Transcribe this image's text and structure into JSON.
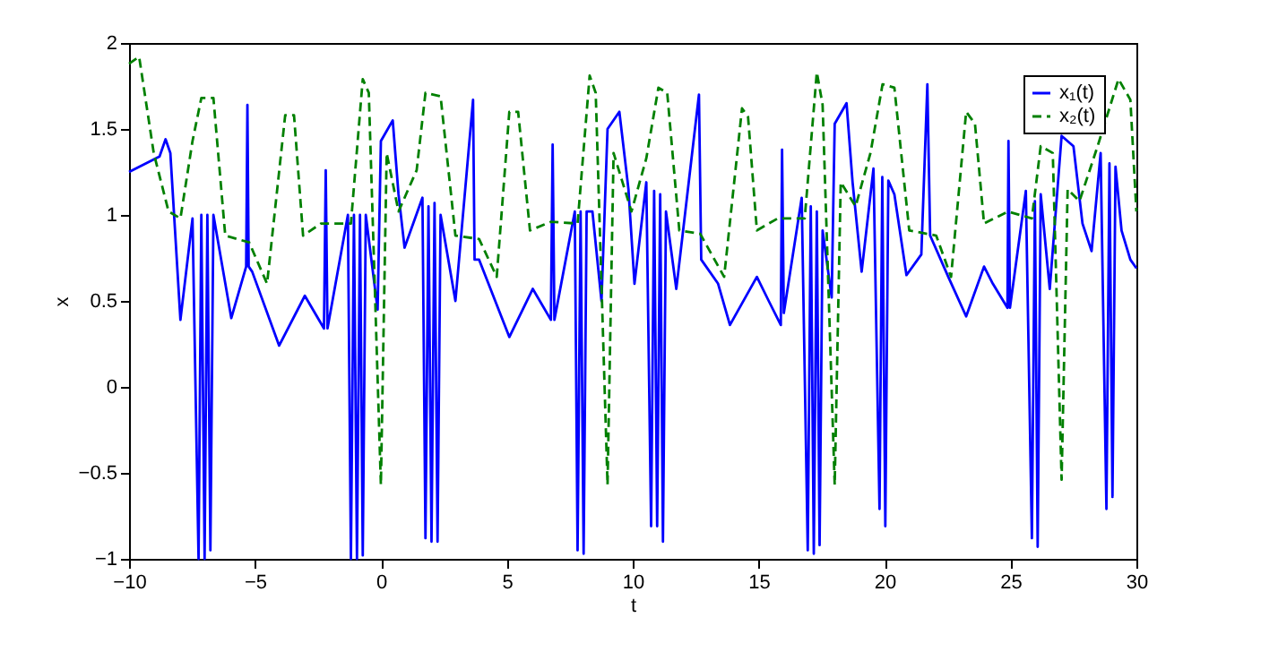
{
  "chart_data": {
    "type": "line",
    "xlabel": "t",
    "ylabel": "x",
    "xlim": [
      -10,
      30
    ],
    "ylim": [
      -1,
      2
    ],
    "xticks": [
      {
        "value": -10,
        "label": "−10"
      },
      {
        "value": -5,
        "label": "−5"
      },
      0,
      5,
      10,
      15,
      20,
      25,
      30
    ],
    "yticks": [
      {
        "value": -1,
        "label": "−1"
      },
      {
        "value": -0.5,
        "label": "−0.5"
      },
      0,
      0.5,
      1,
      1.5,
      2
    ],
    "grid": false,
    "legend": "top right",
    "marker": "none",
    "series": [
      {
        "name": "x₁(t)",
        "color": "#0000ff",
        "line_style": "solid",
        "x": [
          -10,
          -8.79,
          -8.55,
          -8.36,
          -7.96,
          -7.48,
          -7.24,
          -7.13,
          -7.0,
          -6.89,
          -6.77,
          -6.65,
          -5.94,
          -5.35,
          -5.3,
          -5.25,
          -5.11,
          -4.04,
          -3.02,
          -2.26,
          -2.19,
          -2.12,
          -1.31,
          -1.19,
          -1.07,
          -0.95,
          -0.83,
          -0.72,
          -0.6,
          -0.13,
          0,
          0.47,
          0.7,
          0.94,
          1.65,
          1.77,
          1.89,
          2.01,
          2.13,
          2.25,
          2.37,
          2.96,
          3.66,
          3.72,
          3.9,
          5.1,
          6.03,
          6.75,
          6.82,
          6.89,
          7.7,
          7.81,
          7.93,
          8.05,
          8.17,
          8.4,
          8.76,
          9.0,
          9.47,
          9.83,
          10.07,
          10.54,
          10.73,
          10.85,
          10.97,
          11.09,
          11.2,
          11.32,
          11.73,
          12.63,
          12.72,
          13.39,
          13.86,
          14.93,
          15.4,
          15.88,
          15.93,
          16.0,
          16.71,
          16.95,
          17.07,
          17.19,
          17.31,
          17.42,
          17.54,
          17.9,
          18.02,
          18.49,
          18.73,
          19.09,
          19.56,
          19.8,
          19.91,
          20.03,
          20.15,
          20.39,
          20.87,
          21.46,
          21.7,
          21.81,
          22.53,
          23.24,
          23.95,
          24.3,
          24.88,
          24.92,
          24.98,
          25.61,
          25.85,
          25.97,
          26.08,
          26.2,
          26.56,
          27.03,
          27.5,
          27.86,
          28.22,
          28.58,
          28.81,
          28.93,
          29.05,
          29.17,
          29.41,
          29.76,
          30
        ],
        "values": [
          1.25,
          1.34,
          1.44,
          1.36,
          0.39,
          0.98,
          -1,
          1.0,
          -1,
          1.0,
          -0.95,
          1.0,
          0.4,
          0.7,
          1.64,
          0.7,
          0.67,
          0.24,
          0.53,
          0.34,
          1.26,
          0.34,
          1.0,
          -1,
          1.0,
          -1,
          1.0,
          -0.98,
          1.0,
          0.45,
          1.43,
          1.55,
          1.12,
          0.81,
          1.1,
          -0.88,
          1.05,
          -0.9,
          1.07,
          -0.9,
          1.0,
          0.5,
          1.67,
          0.74,
          0.74,
          0.29,
          0.57,
          0.39,
          1.41,
          0.39,
          1.02,
          -0.95,
          1.02,
          -0.97,
          1.02,
          1.02,
          0.5,
          1.5,
          1.6,
          1.15,
          0.6,
          1.19,
          -0.81,
          1.14,
          -0.81,
          1.12,
          -0.9,
          1.02,
          0.57,
          1.7,
          0.74,
          0.6,
          0.36,
          0.64,
          0.5,
          0.36,
          1.38,
          0.43,
          1.1,
          -0.95,
          1.05,
          -0.97,
          1.02,
          -0.92,
          0.91,
          0.52,
          1.53,
          1.65,
          1.19,
          0.67,
          1.27,
          -0.71,
          1.22,
          -0.81,
          1.2,
          1.12,
          0.65,
          0.77,
          1.76,
          0.88,
          0.64,
          0.41,
          0.7,
          0.6,
          0.46,
          1.43,
          0.46,
          1.14,
          -0.88,
          1.08,
          -0.93,
          1.12,
          0.57,
          1.46,
          1.4,
          0.95,
          0.79,
          1.36,
          -0.71,
          1.3,
          -0.64,
          1.28,
          0.91,
          0.74,
          0.69
        ]
      },
      {
        "name": "x₂(t)",
        "color": "#008000",
        "line_style": "dashed",
        "x": [
          -10,
          -9.6,
          -9.02,
          -8.43,
          -7.96,
          -7.48,
          -7.13,
          -6.65,
          -6.18,
          -5.23,
          -4.52,
          -3.8,
          -3.45,
          -3.09,
          -2.38,
          -1.19,
          -0.72,
          -0.48,
          0,
          0.23,
          0.7,
          1.42,
          1.77,
          2.37,
          2.96,
          3.9,
          4.6,
          5.1,
          5.45,
          5.92,
          6.75,
          7.81,
          8.29,
          8.53,
          9.0,
          9.24,
          9.95,
          10.54,
          11.02,
          11.37,
          11.85,
          12.68,
          13.63,
          14.34,
          14.58,
          14.93,
          15.76,
          16.83,
          17.31,
          17.54,
          18.02,
          18.26,
          18.85,
          19.44,
          19.92,
          20.39,
          20.98,
          22.05,
          22.64,
          23.24,
          23.59,
          23.95,
          24.9,
          25.85,
          26.2,
          26.68,
          27.03,
          27.27,
          27.74,
          28.46,
          29.29,
          29.76,
          30
        ],
        "values": [
          1.88,
          1.92,
          1.36,
          1.02,
          0.98,
          1.43,
          1.68,
          1.68,
          0.88,
          0.84,
          0.6,
          1.58,
          1.58,
          0.88,
          0.95,
          0.95,
          1.79,
          1.71,
          -0.57,
          1.36,
          1.02,
          1.26,
          1.71,
          1.69,
          0.88,
          0.86,
          0.64,
          1.6,
          1.6,
          0.91,
          0.96,
          0.95,
          1.81,
          1.71,
          -0.57,
          1.36,
          1.02,
          1.33,
          1.74,
          1.71,
          0.91,
          0.89,
          0.64,
          1.62,
          1.57,
          0.91,
          0.98,
          0.98,
          1.83,
          1.64,
          -0.57,
          1.19,
          1.05,
          1.36,
          1.76,
          1.74,
          0.91,
          0.88,
          0.64,
          1.6,
          1.53,
          0.95,
          1.02,
          0.98,
          1.4,
          1.36,
          -0.54,
          1.15,
          1.08,
          1.4,
          1.79,
          1.67,
          1.02
        ]
      }
    ]
  }
}
